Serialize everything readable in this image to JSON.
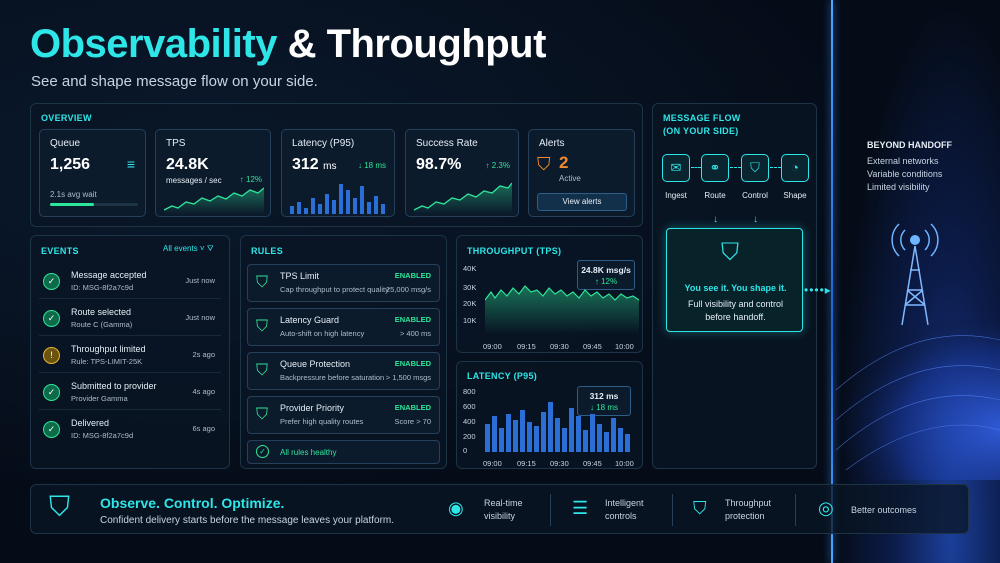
{
  "title": {
    "part1": "Observability",
    "part2": "& Throughput"
  },
  "subtitle": "See and shape message flow on your side.",
  "overview": {
    "label": "OVERVIEW",
    "queue": {
      "label": "Queue",
      "value": "1,256",
      "note": "2.1s avg wait"
    },
    "tps": {
      "label": "TPS",
      "value": "24.8K",
      "unit": "messages / sec",
      "change": "↑ 12%"
    },
    "latency": {
      "label": "Latency (P95)",
      "value": "312",
      "unit": "ms",
      "change": "↓ 18 ms"
    },
    "success": {
      "label": "Success Rate",
      "value": "98.7%",
      "change": "↑ 2.3%"
    },
    "alerts": {
      "label": "Alerts",
      "value": "2",
      "status": "Active",
      "button": "View alerts"
    }
  },
  "events": {
    "label": "EVENTS",
    "filter": "All events",
    "items": [
      {
        "title": "Message accepted",
        "sub": "ID: MSG-8f2a7c9d",
        "time": "Just now"
      },
      {
        "title": "Route selected",
        "sub": "Route C (Gamma)",
        "time": "Just now"
      },
      {
        "title": "Throughput limited",
        "sub": "Rule: TPS-LIMIT-25K",
        "time": "2s ago"
      },
      {
        "title": "Submitted to provider",
        "sub": "Provider Gamma",
        "time": "4s ago"
      },
      {
        "title": "Delivered",
        "sub": "ID: MSG-8f2a7c9d",
        "time": "6s ago"
      }
    ]
  },
  "rules": {
    "label": "RULES",
    "items": [
      {
        "title": "TPS Limit",
        "desc": "Cap throughput to protect quality",
        "status": "ENABLED",
        "value": "25,000 msg/s"
      },
      {
        "title": "Latency Guard",
        "desc": "Auto-shift on high latency",
        "status": "ENABLED",
        "value": "> 400 ms"
      },
      {
        "title": "Queue Protection",
        "desc": "Backpressure before saturation",
        "status": "ENABLED",
        "value": "> 1,500 msgs"
      },
      {
        "title": "Provider Priority",
        "desc": "Prefer high quality routes",
        "status": "ENABLED",
        "value": "Score > 70"
      }
    ],
    "footer": "All rules healthy"
  },
  "throughput": {
    "label": "THROUGHPUT (TPS)",
    "badge_value": "24.8K msg/s",
    "badge_change": "↑ 12%",
    "yticks": [
      "40K",
      "30K",
      "20K",
      "10K"
    ],
    "xticks": [
      "09:00",
      "09:15",
      "09:30",
      "09:45",
      "10:00"
    ]
  },
  "latency_chart": {
    "label": "LATENCY (P95)",
    "badge_value": "312 ms",
    "badge_change": "↓ 18 ms",
    "yticks": [
      "800",
      "600",
      "400",
      "200",
      "0"
    ],
    "xticks": [
      "09:00",
      "09:15",
      "09:30",
      "09:45",
      "10:00"
    ]
  },
  "message_flow": {
    "label1": "MESSAGE FLOW",
    "label2": "(ON YOUR SIDE)",
    "steps": [
      "Ingest",
      "Route",
      "Control",
      "Shape"
    ],
    "headline": "You see it. You shape it.",
    "body1": "Full visibility and control",
    "body2": "before handoff."
  },
  "beyond": {
    "title": "BEYOND HANDOFF",
    "lines": [
      "External networks",
      "Variable conditions",
      "Limited visibility"
    ]
  },
  "footer": {
    "headline": "Observe. Control. Optimize.",
    "sub": "Confident delivery starts before the message leaves your platform.",
    "features": [
      {
        "l1": "Real-time",
        "l2": "visibility"
      },
      {
        "l1": "Intelligent",
        "l2": "controls"
      },
      {
        "l1": "Throughput",
        "l2": "protection"
      },
      {
        "l1": "Better outcomes",
        "l2": ""
      }
    ]
  },
  "colors": {
    "accent": "#2ee6e8",
    "green": "#2ee69a",
    "warn": "#e6b42e",
    "alert": "#f08a2e"
  }
}
